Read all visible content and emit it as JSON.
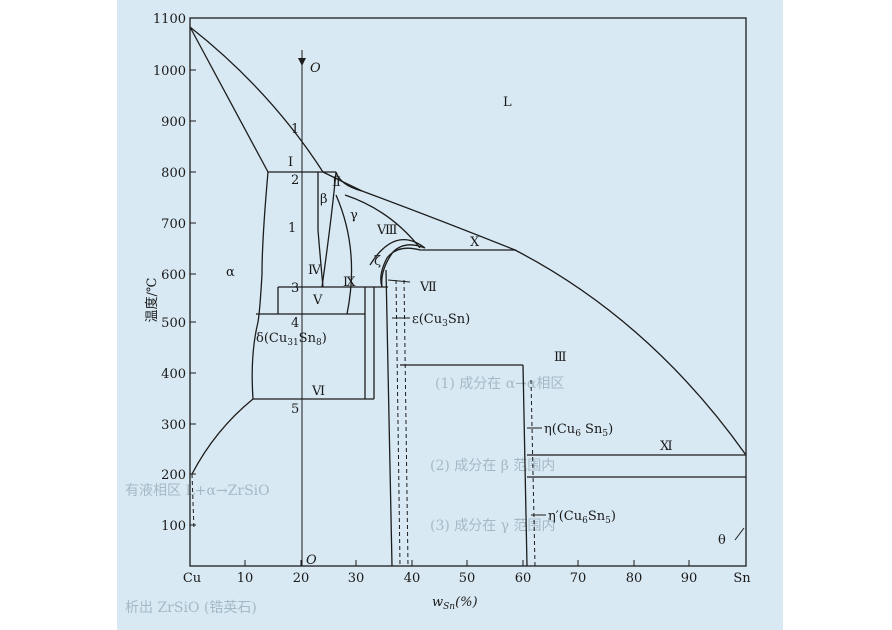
{
  "figure": {
    "y_axis_label": "温度/℃",
    "x_axis_label": "w",
    "x_axis_label_sub": "Sn",
    "x_axis_label_unit": "(%)",
    "y_ticks": [
      "1100",
      "1000",
      "900",
      "800",
      "700",
      "600",
      "500",
      "400",
      "300",
      "200",
      "100"
    ],
    "x_ticks": [
      "Cu",
      "10",
      "20",
      "30",
      "40",
      "50",
      "60",
      "70",
      "80",
      "90",
      "Sn"
    ],
    "colors": {
      "background": "#d8e9f3",
      "lines": "#1c1c1c"
    }
  },
  "labels": {
    "L": "L",
    "alpha": "α",
    "beta": "β",
    "gamma": "γ",
    "zeta": "ζ",
    "theta": "θ",
    "O_top": "O",
    "O_bottom": "O",
    "n1a": "1",
    "n1b": "1",
    "n2": "2",
    "n3": "3",
    "n4": "4",
    "n5": "5",
    "I": "Ⅰ",
    "II": "Ⅱ",
    "III": "Ⅲ",
    "IV": "Ⅳ",
    "V": "Ⅴ",
    "VI": "Ⅵ",
    "VII": "Ⅶ",
    "VIII": "Ⅷ",
    "IX": "Ⅸ",
    "X": "Ⅹ",
    "XI": "Ⅺ",
    "delta": "δ(Cu",
    "delta_sub": "31",
    "delta_mid": "Sn",
    "delta_sub2": "8",
    "delta_end": ")",
    "epsilon": "ε(Cu",
    "epsilon_sub": "3",
    "epsilon_end": "Sn)",
    "eta": "η(Cu",
    "eta_sub": "6",
    "eta_mid": " Sn",
    "eta_sub2": "5",
    "eta_end": ")",
    "eta2": "η′(Cu",
    "eta2_sub": "6",
    "eta2_mid": "Sn",
    "eta2_sub2": "5",
    "eta2_end": ")"
  },
  "background_text": [
    "(1) 成分在 α→α相区",
    "(2) 成分在 β 范围内",
    "(3) 成分在 γ 范围内",
    "有液相区 L+α→ZrSiO",
    "析出 ZrSiO (锆英石)"
  ]
}
